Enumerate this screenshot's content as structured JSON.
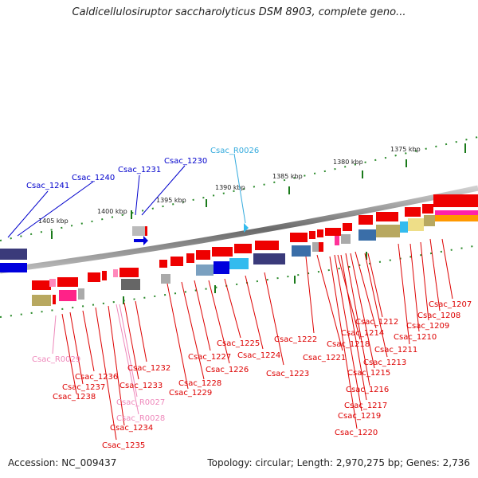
{
  "title": "Caldicellulosiruptor saccharolyticus DSM 8903, complete geno...",
  "footer": {
    "accession": "Accession: NC_009437",
    "summary": "Topology: circular; Length: 2,970,275 bp; Genes: 2,736"
  },
  "scale_labels": [
    "1405 kbp",
    "1400 kbp",
    "1395 kbp",
    "1390 kbp",
    "1385 kbp",
    "1380 kbp",
    "1375 kbp"
  ],
  "labels_top": [
    {
      "text": "Csac_1241",
      "color": "#0000cc"
    },
    {
      "text": "Csac_1240",
      "color": "#0000cc"
    },
    {
      "text": "Csac_1231",
      "color": "#0000cc"
    },
    {
      "text": "Csac_1230",
      "color": "#0000cc"
    },
    {
      "text": "Csac_R0026",
      "color": "#33aadd"
    }
  ],
  "labels_bottom": [
    {
      "text": "Csac_1207",
      "color": "#dd0000"
    },
    {
      "text": "Csac_1208",
      "color": "#dd0000"
    },
    {
      "text": "Csac_1209",
      "color": "#dd0000"
    },
    {
      "text": "Csac_1210",
      "color": "#dd0000"
    },
    {
      "text": "Csac_1211",
      "color": "#dd0000"
    },
    {
      "text": "Csac_1212",
      "color": "#dd0000"
    },
    {
      "text": "Csac_1213",
      "color": "#dd0000"
    },
    {
      "text": "Csac_1214",
      "color": "#dd0000"
    },
    {
      "text": "Csac_1215",
      "color": "#dd0000"
    },
    {
      "text": "Csac_1216",
      "color": "#dd0000"
    },
    {
      "text": "Csac_1217",
      "color": "#dd0000"
    },
    {
      "text": "Csac_1218",
      "color": "#dd0000"
    },
    {
      "text": "Csac_1219",
      "color": "#dd0000"
    },
    {
      "text": "Csac_1220",
      "color": "#dd0000"
    },
    {
      "text": "Csac_1221",
      "color": "#dd0000"
    },
    {
      "text": "Csac_1222",
      "color": "#dd0000"
    },
    {
      "text": "Csac_1223",
      "color": "#dd0000"
    },
    {
      "text": "Csac_1224",
      "color": "#dd0000"
    },
    {
      "text": "Csac_1225",
      "color": "#dd0000"
    },
    {
      "text": "Csac_1226",
      "color": "#dd0000"
    },
    {
      "text": "Csac_1227",
      "color": "#dd0000"
    },
    {
      "text": "Csac_1228",
      "color": "#dd0000"
    },
    {
      "text": "Csac_1229",
      "color": "#dd0000"
    },
    {
      "text": "Csac_1232",
      "color": "#dd0000"
    },
    {
      "text": "Csac_1233",
      "color": "#dd0000"
    },
    {
      "text": "Csac_R0027",
      "color": "#ee88bb"
    },
    {
      "text": "Csac_R0028",
      "color": "#ee88bb"
    },
    {
      "text": "Csac_1234",
      "color": "#dd0000"
    },
    {
      "text": "Csac_1235",
      "color": "#dd0000"
    },
    {
      "text": "Csac_1236",
      "color": "#dd0000"
    },
    {
      "text": "Csac_1237",
      "color": "#dd0000"
    },
    {
      "text": "Csac_1238",
      "color": "#dd0000"
    },
    {
      "text": "Csac_R0029",
      "color": "#ee88bb"
    }
  ],
  "colors": {
    "cds_red": "#ee0000",
    "rna_pink": "#ff88bb",
    "trna_cyan": "#33bbee",
    "blue": "#0000dd",
    "backbone": "#777777",
    "scale": "#227722"
  }
}
